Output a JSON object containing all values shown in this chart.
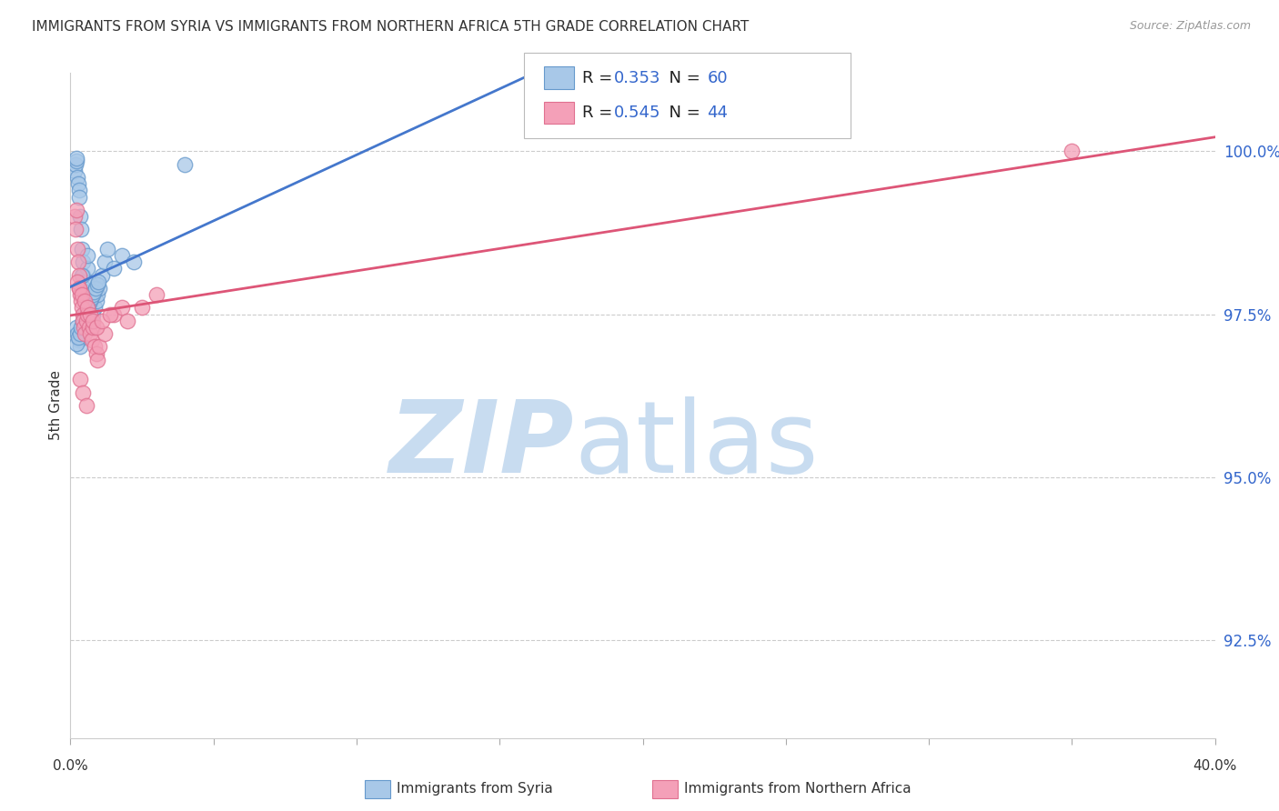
{
  "title": "IMMIGRANTS FROM SYRIA VS IMMIGRANTS FROM NORTHERN AFRICA 5TH GRADE CORRELATION CHART",
  "source": "Source: ZipAtlas.com",
  "ylabel": "5th Grade",
  "blue_R": "0.353",
  "blue_N": "60",
  "pink_R": "0.545",
  "pink_N": "44",
  "blue_color": "#A8C8E8",
  "pink_color": "#F4A0B8",
  "blue_edge_color": "#6699CC",
  "pink_edge_color": "#E07090",
  "blue_line_color": "#4477CC",
  "pink_line_color": "#DD5577",
  "legend_text_color": "#3366CC",
  "legend_label_color": "#222222",
  "watermark_zip_color": "#C8DCF0",
  "watermark_atlas_color": "#C8DCF0",
  "background_color": "#FFFFFF",
  "grid_color": "#CCCCCC",
  "title_color": "#333333",
  "source_color": "#999999",
  "label_color": "#333333",
  "ytick_color": "#3366CC",
  "x_lim": [
    0.0,
    40.0
  ],
  "y_lim": [
    91.0,
    101.2
  ],
  "y_ticks": [
    92.5,
    95.0,
    97.5,
    100.0
  ],
  "blue_scatter_x": [
    0.15,
    0.18,
    0.2,
    0.22,
    0.25,
    0.28,
    0.3,
    0.32,
    0.35,
    0.38,
    0.4,
    0.42,
    0.45,
    0.48,
    0.5,
    0.52,
    0.55,
    0.58,
    0.6,
    0.65,
    0.7,
    0.75,
    0.8,
    0.85,
    0.9,
    0.95,
    1.0,
    1.1,
    1.2,
    1.3,
    0.2,
    0.25,
    0.3,
    0.35,
    0.4,
    0.45,
    0.5,
    0.55,
    0.22,
    0.28,
    0.33,
    0.38,
    0.43,
    0.48,
    0.53,
    0.58,
    0.63,
    0.68,
    0.73,
    0.78,
    0.83,
    0.88,
    0.93,
    0.98,
    1.5,
    1.8,
    2.2,
    0.6,
    0.4,
    4.0
  ],
  "blue_scatter_y": [
    99.7,
    99.8,
    99.85,
    99.9,
    99.6,
    99.5,
    99.4,
    99.3,
    99.0,
    98.8,
    98.5,
    98.3,
    98.1,
    97.9,
    97.8,
    97.85,
    98.0,
    98.2,
    98.4,
    97.6,
    97.5,
    97.4,
    97.5,
    97.6,
    97.7,
    97.8,
    97.9,
    98.1,
    98.3,
    98.5,
    97.3,
    97.2,
    97.1,
    97.0,
    97.15,
    97.25,
    97.35,
    97.45,
    97.05,
    97.15,
    97.2,
    97.3,
    97.4,
    97.5,
    97.55,
    97.6,
    97.65,
    97.7,
    97.75,
    97.8,
    97.85,
    97.9,
    97.95,
    98.0,
    98.2,
    98.4,
    98.3,
    97.6,
    98.1,
    99.8
  ],
  "pink_scatter_x": [
    0.15,
    0.18,
    0.22,
    0.25,
    0.28,
    0.3,
    0.32,
    0.35,
    0.38,
    0.4,
    0.42,
    0.45,
    0.48,
    0.5,
    0.55,
    0.6,
    0.65,
    0.7,
    0.75,
    0.8,
    0.85,
    0.9,
    0.95,
    1.0,
    1.2,
    1.5,
    1.8,
    2.0,
    2.5,
    3.0,
    0.25,
    0.3,
    0.4,
    0.5,
    0.6,
    0.7,
    0.8,
    0.9,
    1.1,
    1.4,
    0.35,
    0.45,
    0.55,
    35.0
  ],
  "pink_scatter_y": [
    99.0,
    98.8,
    99.1,
    98.5,
    98.3,
    98.1,
    97.9,
    97.8,
    97.7,
    97.6,
    97.5,
    97.4,
    97.3,
    97.2,
    97.4,
    97.5,
    97.3,
    97.2,
    97.1,
    97.3,
    97.0,
    96.9,
    96.8,
    97.0,
    97.2,
    97.5,
    97.6,
    97.4,
    97.6,
    97.8,
    98.0,
    97.9,
    97.8,
    97.7,
    97.6,
    97.5,
    97.4,
    97.3,
    97.4,
    97.5,
    96.5,
    96.3,
    96.1,
    100.0
  ]
}
